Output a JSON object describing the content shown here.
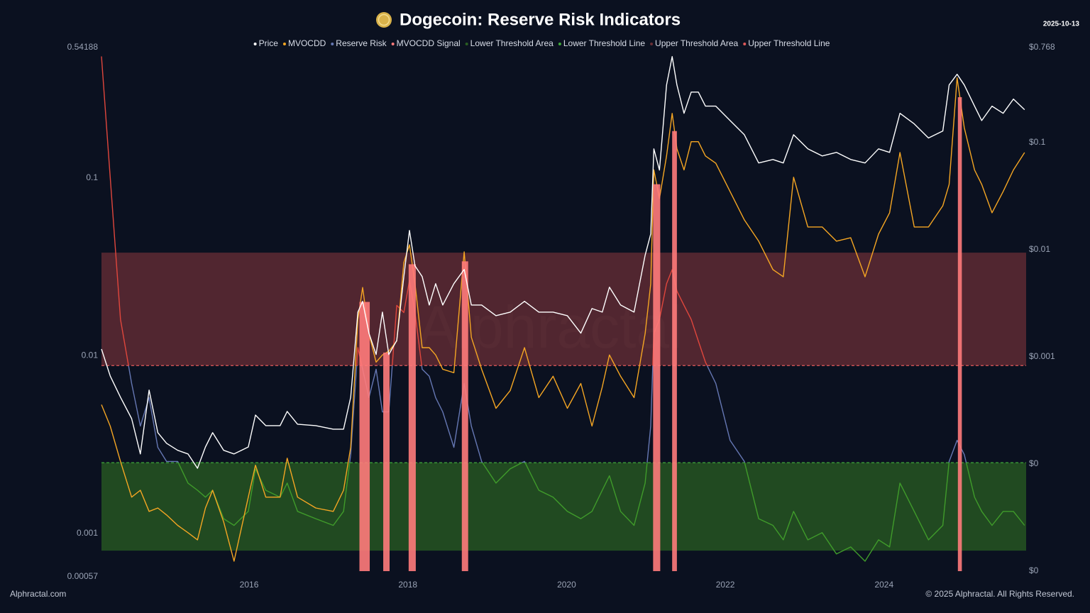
{
  "chart_data": {
    "type": "line",
    "title": "Dogecoin: Reserve Risk Indicators",
    "date": "2025-10-13",
    "watermark": "Alphractal",
    "source": "Alphractal.com",
    "copyright": "© 2025 Alphractal. All Rights Reserved.",
    "log_scale": true,
    "x": [
      2014.14,
      2014.25,
      2014.38,
      2014.52,
      2014.63,
      2014.74,
      2014.85,
      2014.96,
      2015.1,
      2015.23,
      2015.35,
      2015.45,
      2015.54,
      2015.68,
      2015.81,
      2015.99,
      2016.08,
      2016.21,
      2016.39,
      2016.48,
      2016.61,
      2016.84,
      2017.06,
      2017.19,
      2017.28,
      2017.37,
      2017.43,
      2017.51,
      2017.6,
      2017.68,
      2017.76,
      2017.86,
      2017.95,
      2018.02,
      2018.09,
      2018.18,
      2018.27,
      2018.35,
      2018.44,
      2018.58,
      2018.71,
      2018.8,
      2018.93,
      2019.11,
      2019.29,
      2019.47,
      2019.65,
      2019.83,
      2020.01,
      2020.18,
      2020.32,
      2020.45,
      2020.54,
      2020.68,
      2020.85,
      2020.99,
      2021.06,
      2021.1,
      2021.17,
      2021.26,
      2021.33,
      2021.39,
      2021.48,
      2021.57,
      2021.66,
      2021.75,
      2021.88,
      2022.06,
      2022.24,
      2022.42,
      2022.6,
      2022.73,
      2022.86,
      2023.04,
      2023.22,
      2023.4,
      2023.58,
      2023.76,
      2023.93,
      2024.07,
      2024.2,
      2024.38,
      2024.56,
      2024.74,
      2024.82,
      2024.92,
      2025.01,
      2025.14,
      2025.23,
      2025.36,
      2025.5,
      2025.63,
      2025.77
    ],
    "xlim": [
      2014.14,
      2025.79
    ],
    "xticks": [
      2016,
      2018,
      2020,
      2022,
      2024
    ],
    "ylim": [
      0.00057,
      0.54188
    ],
    "yticks": [
      0.54188,
      0.1,
      0.01,
      0.001,
      0.00057
    ],
    "y2lim": [
      1e-05,
      0.768
    ],
    "y2ticks": [
      {
        "value": 0.768,
        "label": "$0.768"
      },
      {
        "value": 0.1,
        "label": "$0.1"
      },
      {
        "value": 0.01,
        "label": "$0.01"
      },
      {
        "value": 0.001,
        "label": "$0.001"
      },
      {
        "value": 0.0001,
        "label": "$0"
      },
      {
        "value": 1e-05,
        "label": "$0"
      }
    ],
    "series": [
      {
        "name": "Price",
        "color": "#ffffff",
        "axis": "y2",
        "values": [
          0.00118,
          0.000662,
          0.000419,
          0.000265,
          0.000124,
          0.000489,
          0.000196,
          0.000156,
          0.000134,
          0.000124,
          9.12e-05,
          0.000144,
          0.000196,
          0.000134,
          0.000124,
          0.000144,
          0.000286,
          0.000228,
          0.000228,
          0.000309,
          0.000235,
          0.000228,
          0.000211,
          0.000211,
          0.000419,
          0.00261,
          0.00329,
          0.00166,
          0.00105,
          0.00261,
          0.00105,
          0.00142,
          0.0056,
          0.0151,
          0.00705,
          0.0056,
          0.00304,
          0.00481,
          0.00304,
          0.00481,
          0.00653,
          0.00304,
          0.00304,
          0.00242,
          0.00261,
          0.00329,
          0.00261,
          0.00261,
          0.00242,
          0.00166,
          0.00282,
          0.00261,
          0.00446,
          0.00304,
          0.00261,
          0.00885,
          0.014,
          0.0871,
          0.0552,
          0.344,
          0.633,
          0.344,
          0.187,
          0.295,
          0.295,
          0.218,
          0.218,
          0.16,
          0.118,
          0.0643,
          0.0693,
          0.0643,
          0.118,
          0.0871,
          0.0748,
          0.0807,
          0.0693,
          0.0643,
          0.0871,
          0.0807,
          0.187,
          0.149,
          0.11,
          0.128,
          0.344,
          0.432,
          0.344,
          0.218,
          0.16,
          0.218,
          0.187,
          0.254,
          0.202
        ]
      },
      {
        "name": "MVOCDD",
        "color": "#f5a623",
        "values": [
          0.0053,
          0.00402,
          0.00254,
          0.0016,
          0.00175,
          0.00133,
          0.00139,
          0.00127,
          0.00111,
          0.00101,
          0.00092,
          0.00139,
          0.00175,
          0.00116,
          0.000698,
          0.0016,
          0.00242,
          0.0016,
          0.0016,
          0.00265,
          0.0016,
          0.00139,
          0.00133,
          0.00175,
          0.00305,
          0.016,
          0.0242,
          0.0133,
          0.0092,
          0.0101,
          0.0106,
          0.0121,
          0.0334,
          0.0421,
          0.0254,
          0.0111,
          0.0111,
          0.0101,
          0.00839,
          0.00802,
          0.0384,
          0.0127,
          0.00839,
          0.00506,
          0.00637,
          0.0111,
          0.00581,
          0.00766,
          0.00506,
          0.00698,
          0.00402,
          0.00667,
          0.0101,
          0.00766,
          0.00581,
          0.0133,
          0.0254,
          0.111,
          0.0766,
          0.133,
          0.231,
          0.146,
          0.111,
          0.16,
          0.16,
          0.133,
          0.121,
          0.0839,
          0.0581,
          0.0441,
          0.0305,
          0.0278,
          0.101,
          0.053,
          0.053,
          0.0441,
          0.0461,
          0.0278,
          0.0483,
          0.0637,
          0.139,
          0.053,
          0.053,
          0.0698,
          0.092,
          0.366,
          0.192,
          0.111,
          0.092,
          0.0637,
          0.0839,
          0.111,
          0.139
        ]
      },
      {
        "name": "Reserve Risk",
        "color": "#6577b3",
        "color_above": "#e0463c",
        "color_below": "#3f9b2a",
        "values": [
          0.483,
          0.101,
          0.016,
          0.00698,
          0.00402,
          0.00581,
          0.00305,
          0.00254,
          0.00254,
          0.00192,
          0.00175,
          0.0016,
          0.00175,
          0.00121,
          0.00111,
          0.00133,
          0.00231,
          0.00175,
          0.0016,
          0.00192,
          0.00133,
          0.00121,
          0.00111,
          0.00133,
          0.00278,
          0.0111,
          0.00839,
          0.00581,
          0.00839,
          0.00483,
          0.00483,
          0.0192,
          0.0175,
          0.0265,
          0.0175,
          0.00839,
          0.00766,
          0.00581,
          0.00483,
          0.00305,
          0.00698,
          0.00402,
          0.00254,
          0.00192,
          0.00231,
          0.00254,
          0.00175,
          0.0016,
          0.00133,
          0.00121,
          0.00133,
          0.00175,
          0.00211,
          0.00133,
          0.00111,
          0.00192,
          0.00402,
          0.0133,
          0.016,
          0.0254,
          0.0305,
          0.0231,
          0.0192,
          0.016,
          0.0121,
          0.0092,
          0.00698,
          0.00334,
          0.00254,
          0.00121,
          0.00111,
          0.00092,
          0.00133,
          0.00092,
          0.00101,
          0.000766,
          0.000839,
          0.000698,
          0.00092,
          0.000839,
          0.00192,
          0.00133,
          0.00092,
          0.00111,
          0.00254,
          0.00334,
          0.00278,
          0.0016,
          0.00133,
          0.00111,
          0.00133,
          0.00133,
          0.00111
        ]
      },
      {
        "name": "MVOCDD Signal",
        "color": "#ff7b7b",
        "spans": [
          [
            2017.39,
            2017.52
          ],
          [
            2017.69,
            2017.77
          ],
          [
            2018.01,
            2018.1
          ],
          [
            2018.68,
            2018.76
          ],
          [
            2021.09,
            2021.18
          ],
          [
            2021.33,
            2021.39
          ],
          [
            2024.93,
            2024.98
          ]
        ]
      },
      {
        "name": "Lower Threshold Area",
        "color": "#2a5e22",
        "range": [
          0.0008,
          0.0025
        ]
      },
      {
        "name": "Lower Threshold Line",
        "color": "#3fa83a",
        "value": 0.0025
      },
      {
        "name": "Upper Threshold Area",
        "color": "#6a2e35",
        "range": [
          0.0088,
          0.038
        ]
      },
      {
        "name": "Upper Threshold Line",
        "color": "#e05a5a",
        "value": 0.0088
      }
    ]
  }
}
